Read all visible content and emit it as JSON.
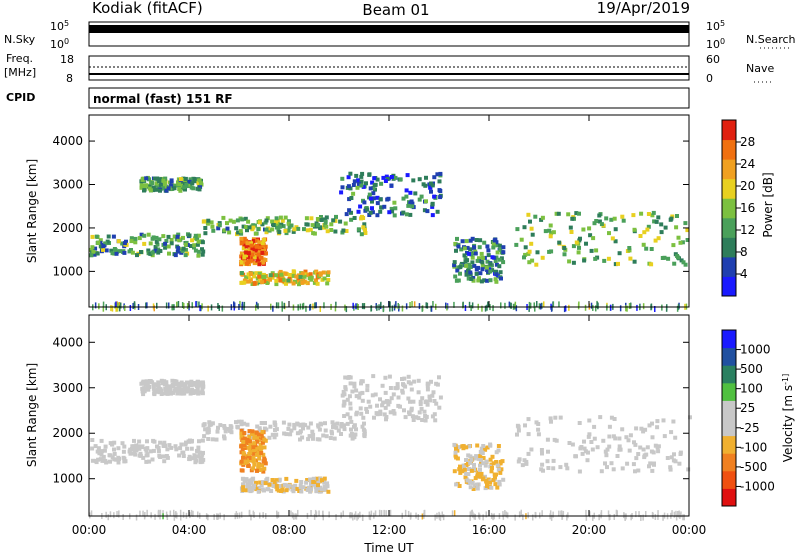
{
  "header": {
    "radar": "Kodiak (fitACF)",
    "beam": "Beam 01",
    "date": "19/Apr/2019"
  },
  "panels": {
    "nsky": {
      "left_label": "N.Sky",
      "right_label": "N.Search",
      "ticks_left": [
        "10^5",
        "10^0"
      ],
      "ticks_right": [
        "10^5",
        "10^0"
      ]
    },
    "freq": {
      "left_label_1": "Freq.",
      "left_label_2": "[MHz]",
      "right_label": "Nave",
      "ticks_left": [
        "18",
        "8"
      ],
      "ticks_right": [
        "60",
        "0"
      ]
    },
    "cpid": {
      "label": "CPID",
      "text": "normal (fast) 151 RF"
    }
  },
  "colors": {
    "power_scale": [
      "#1a1aff",
      "#1f3fb0",
      "#2e7d5a",
      "#4aa05a",
      "#7cc040",
      "#e8d020",
      "#f0a020",
      "#f07010",
      "#e02010"
    ],
    "velocity_scale": [
      "#e01010",
      "#f05010",
      "#f08020",
      "#f0b030",
      "#c8c8c8",
      "#c8c8c8",
      "#50c040",
      "#2a8060",
      "#2050a0",
      "#1a1aff"
    ],
    "ground_scatter": "#c0c0c0"
  },
  "chart_data": [
    {
      "type": "heatmap",
      "title": "Power",
      "xlabel": "",
      "ylabel": "Slant Range [km]",
      "xlim": [
        "00:00",
        "24:00"
      ],
      "ylim": [
        180,
        4600
      ],
      "x_ticks": [
        "00:00",
        "04:00",
        "08:00",
        "12:00",
        "16:00",
        "20:00",
        "00:00"
      ],
      "y_ticks": [
        1000,
        2000,
        3000,
        4000
      ],
      "colorbar": {
        "label": "Power [dB]",
        "range": [
          0,
          32
        ],
        "ticks": [
          4,
          8,
          12,
          16,
          20,
          24,
          28
        ]
      },
      "regions": [
        {
          "t0": 0.0,
          "t1": 4.5,
          "r0": 1400,
          "r1": 1900,
          "level": 12
        },
        {
          "t0": 2.0,
          "t1": 4.5,
          "r0": 2900,
          "r1": 3200,
          "level": 12
        },
        {
          "t0": 4.5,
          "t1": 11.0,
          "r0": 1900,
          "r1": 2300,
          "level": 14
        },
        {
          "t0": 6.0,
          "t1": 7.0,
          "r0": 1200,
          "r1": 1800,
          "level": 26
        },
        {
          "t0": 6.0,
          "t1": 9.5,
          "r0": 750,
          "r1": 1050,
          "level": 20
        },
        {
          "t0": 10.0,
          "t1": 14.0,
          "r0": 2300,
          "r1": 3300,
          "level": 8
        },
        {
          "t0": 14.5,
          "t1": 16.5,
          "r0": 800,
          "r1": 1800,
          "level": 10
        },
        {
          "t0": 17.0,
          "t1": 24.0,
          "r0": 1200,
          "r1": 2400,
          "level": 14
        }
      ]
    },
    {
      "type": "heatmap",
      "title": "Velocity",
      "xlabel": "Time UT",
      "ylabel": "Slant Range [km]",
      "xlim": [
        "00:00",
        "24:00"
      ],
      "ylim": [
        180,
        4600
      ],
      "x_ticks": [
        "00:00",
        "04:00",
        "08:00",
        "12:00",
        "16:00",
        "20:00",
        "00:00"
      ],
      "y_ticks": [
        1000,
        2000,
        3000,
        4000
      ],
      "colorbar": {
        "label": "Velocity [m s^-1]",
        "ticks": [
          "1000",
          "500",
          "100",
          "25",
          "-25",
          "-100",
          "-500",
          "-1000"
        ]
      },
      "regions": [
        {
          "t0": 0.0,
          "t1": 4.5,
          "r0": 1400,
          "r1": 1900,
          "velocity": 0
        },
        {
          "t0": 2.0,
          "t1": 4.5,
          "r0": 2900,
          "r1": 3200,
          "velocity": 0
        },
        {
          "t0": 4.5,
          "t1": 11.0,
          "r0": 1900,
          "r1": 2300,
          "velocity": 0
        },
        {
          "t0": 6.0,
          "t1": 7.0,
          "r0": 1200,
          "r1": 2100,
          "velocity": -400
        },
        {
          "t0": 6.0,
          "t1": 9.5,
          "r0": 750,
          "r1": 1050,
          "velocity": -150
        },
        {
          "t0": 10.0,
          "t1": 14.0,
          "r0": 2300,
          "r1": 3300,
          "velocity": 0
        },
        {
          "t0": 14.5,
          "t1": 16.5,
          "r0": 800,
          "r1": 1800,
          "velocity": -200
        },
        {
          "t0": 17.0,
          "t1": 24.0,
          "r0": 1200,
          "r1": 2400,
          "velocity": 0
        }
      ]
    }
  ]
}
